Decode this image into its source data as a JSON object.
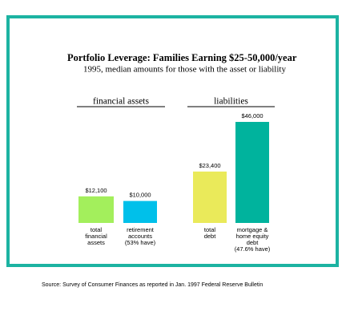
{
  "chart_data": {
    "type": "bar",
    "title": "Portfolio Leverage: Families Earning $25-50,000/year",
    "subtitle": "1995, median amounts for those with the asset or liability",
    "groups": [
      {
        "name": "financial assets",
        "categories": [
          [
            "total",
            "financial",
            "assets"
          ],
          [
            "retirement",
            "accounts",
            "(53% have)"
          ]
        ],
        "values": [
          12100,
          10000
        ],
        "value_labels": [
          "$12,100",
          "$10,000"
        ],
        "colors": [
          "#a3ef5c",
          "#00c0ea"
        ]
      },
      {
        "name": "liabilities",
        "categories": [
          [
            "total",
            "debt"
          ],
          [
            "mortgage &",
            "home equity",
            "debt",
            "(47.6% have)"
          ]
        ],
        "values": [
          23400,
          46000
        ],
        "value_labels": [
          "$23,400",
          "$46,000"
        ],
        "colors": [
          "#eaea5a",
          "#00b39d"
        ]
      }
    ],
    "source": "Source: Survey of Consumer Finances as reported in Jan. 1997 Federal Reserve Bulletin"
  }
}
